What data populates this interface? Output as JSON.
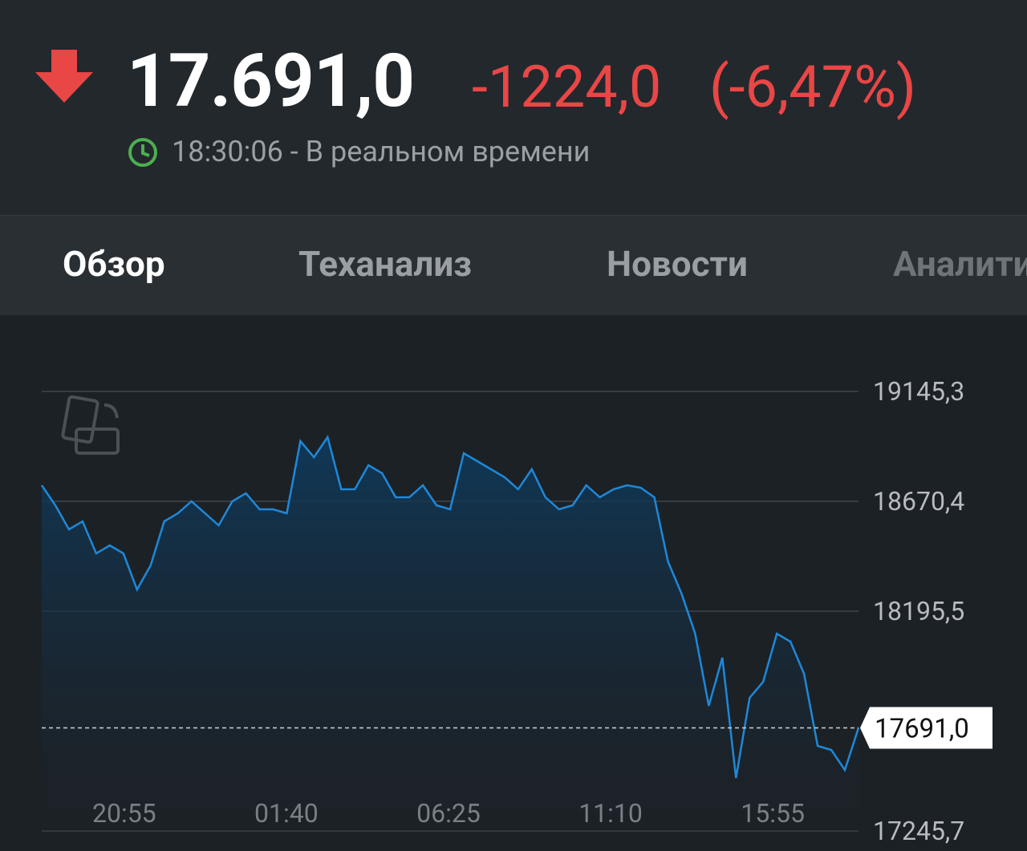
{
  "header": {
    "price": "17.691,0",
    "change": "-1224,0",
    "change_percent": "(-6,47%)",
    "time": "18:30:06",
    "time_note": "- В реальном времени"
  },
  "tabs": [
    "Обзор",
    "Теханализ",
    "Новости",
    "Аналитика"
  ],
  "chart_data": {
    "type": "line",
    "color": "#1e88d8",
    "x_labels": [
      "20:55",
      "01:40",
      "06:25",
      "11:10",
      "15:55"
    ],
    "values": [
      18739.7,
      18653.1,
      18549.1,
      18583.7,
      18445.1,
      18479.8,
      18445.1,
      18289.1,
      18393.1,
      18583.7,
      18618.4,
      18670.4,
      18618.4,
      18566.4,
      18670.4,
      18705.1,
      18635.7,
      18635.7,
      18618.4,
      18930.4,
      18861.1,
      18947.7,
      18722.4,
      18722.4,
      18826.4,
      18791.7,
      18687.7,
      18687.7,
      18739.7,
      18653.1,
      18635.7,
      18878.4,
      18843.7,
      18809.1,
      18774.4,
      18722.4,
      18809.1,
      18687.7,
      18635.7,
      18653.1,
      18739.7,
      18687.7,
      18722.4,
      18739.7,
      18729.3,
      18687.7,
      18410.4,
      18271.8,
      18098.4,
      17786.5,
      17994.5,
      17474.5,
      17821.1,
      17890.5,
      18098.4,
      18063.8,
      17925.1,
      17613.2,
      17595.8,
      17509.2,
      17691.0
    ],
    "last_value": 17691.0,
    "last_label": "17691,0",
    "ylim": [
      17245.7,
      19145.3
    ],
    "yticks": [
      {
        "value": 19145.3,
        "label": "19145,3"
      },
      {
        "value": 18670.4,
        "label": "18670,4"
      },
      {
        "value": 18195.5,
        "label": "18195,5"
      },
      {
        "value": 17245.7,
        "label": "17245,7"
      }
    ],
    "grid": true
  }
}
